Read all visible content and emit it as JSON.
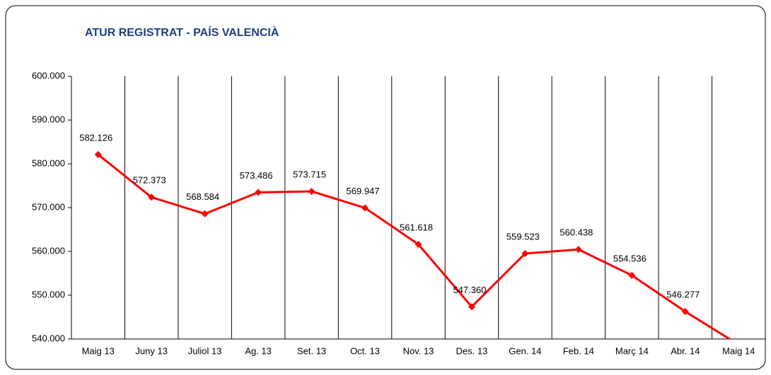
{
  "chart_data": {
    "type": "line",
    "title": "ATUR REGISTRAT - PAÍS VALENCIÀ",
    "categories": [
      "Maig 13",
      "Juny 13",
      "Juliol 13",
      "Ag. 13",
      "Set. 13",
      "Oct. 13",
      "Nov. 13",
      "Des. 13",
      "Gen. 14",
      "Feb. 14",
      "Març 14",
      "Abr. 14",
      "Maig 14"
    ],
    "series": [
      {
        "name": "Atur registrat",
        "color": "#ff0000",
        "values": [
          582126,
          572373,
          568584,
          573486,
          573715,
          569947,
          561618,
          547360,
          559523,
          560438,
          554536,
          546277,
          538700
        ],
        "value_labels": [
          "582.126",
          "572.373",
          "568.584",
          "573.486",
          "573.715",
          "569.947",
          "561.618",
          "547.360",
          "559.523",
          "560.438",
          "554.536",
          "546.277",
          null
        ]
      }
    ],
    "ylim": [
      540000,
      600000
    ],
    "yticks": [
      {
        "value": 540000,
        "label": "540.000"
      },
      {
        "value": 550000,
        "label": "550.000"
      },
      {
        "value": 560000,
        "label": "560.000"
      },
      {
        "value": 570000,
        "label": "570.000"
      },
      {
        "value": 580000,
        "label": "580.000"
      },
      {
        "value": 590000,
        "label": "590.000"
      },
      {
        "value": 600000,
        "label": "600.000"
      }
    ],
    "grid": true
  }
}
